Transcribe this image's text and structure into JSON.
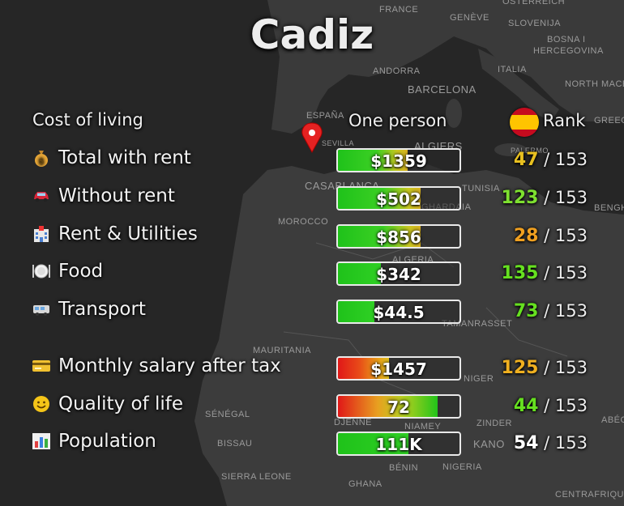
{
  "city": "Cadiz",
  "header": {
    "section": "Cost of living",
    "one_person": "One person",
    "rank": "Rank"
  },
  "map_labels": {
    "france": "FRANCE",
    "geneve": "GENÈVE",
    "osterreich": "ÖSTERREICH",
    "slovenija": "SLOVENIJA",
    "bosna": "BOSNA I",
    "hercegovina": "HERCEGOVINA",
    "andorra": "ANDORRA",
    "italia": "ITALIA",
    "barcelona": "BARCELONA",
    "north_mace": "NORTH MACE",
    "espana": "ESPAÑA",
    "sevilla": "SEVILLA",
    "algiers": "ALGIERS",
    "palermo": "PALERMO",
    "casablanca": "CASABLANCA",
    "tunisia": "TUNISIA",
    "ghardaia": "GHARDAIA",
    "morocco": "MOROCCO",
    "benghazi": "BENGHA",
    "algeria": "ALGERIA",
    "tamanrasset": "TAMANRASSET",
    "mauritania": "MAURITANIA",
    "niger": "NIGER",
    "senegal": "SÉNÉGAL",
    "djenne": "DJENNE",
    "niamey": "NIAMEY",
    "zinder": "ZINDER",
    "abe": "ABÉC",
    "bissau": "BISSAU",
    "kano": "KANO",
    "benin": "BÉNIN",
    "nigeria": "NIGERIA",
    "sierra_leone": "SIERRA LEONE",
    "ghana": "GHANA",
    "centrafrique": "CENTRAFRIQUE",
    "greece": "GREEC"
  },
  "colors": {
    "green": "#22c41a",
    "yellow": "#e0c21a",
    "orange": "#f0a020",
    "red": "#e01818",
    "rank_total": "#eeeeee",
    "rank_white": "#ffffff"
  },
  "rows": [
    {
      "label": "Total with rent",
      "icon": "money-bag-icon",
      "value": "$1359",
      "fill_fraction": 0.57,
      "fill_style": "green-yellow",
      "rank": "47",
      "rank_color": "#e8c020",
      "total": "/ 153"
    },
    {
      "label": "Without rent",
      "icon": "car-icon",
      "value": "$502",
      "fill_fraction": 0.68,
      "fill_style": "green-yellow",
      "rank": "123",
      "rank_color": "#7ee030",
      "total": "/ 153"
    },
    {
      "label": "Rent & Utilities",
      "icon": "hospital-building-icon",
      "value": "$856",
      "fill_fraction": 0.68,
      "fill_style": "green-yellow",
      "rank": "28",
      "rank_color": "#f0a020",
      "total": "/ 153"
    },
    {
      "label": "Food",
      "icon": "plate-cutlery-icon",
      "value": "$342",
      "fill_fraction": 0.35,
      "fill_style": "green",
      "rank": "135",
      "rank_color": "#66e020",
      "total": "/ 153"
    },
    {
      "label": "Transport",
      "icon": "bus-icon",
      "value": "$44.5",
      "fill_fraction": 0.3,
      "fill_style": "green",
      "rank": "73",
      "rank_color": "#66e020",
      "total": "/ 153"
    },
    {
      "label": "Monthly salary after tax",
      "icon": "credit-card-icon",
      "value": "$1457",
      "fill_fraction": 0.42,
      "fill_style": "red-yellow",
      "rank": "125",
      "rank_color": "#f0b020",
      "total": "/ 153"
    },
    {
      "label": "Quality of life",
      "icon": "smiley-icon",
      "value": "72",
      "fill_fraction": 0.82,
      "fill_style": "red-green",
      "rank": "44",
      "rank_color": "#66e020",
      "total": "/ 153"
    },
    {
      "label": "Population",
      "icon": "bar-chart-icon",
      "value": "111K",
      "fill_fraction": 0.58,
      "fill_style": "green",
      "rank": "54",
      "rank_color": "#ffffff",
      "total": "/ 153"
    }
  ]
}
